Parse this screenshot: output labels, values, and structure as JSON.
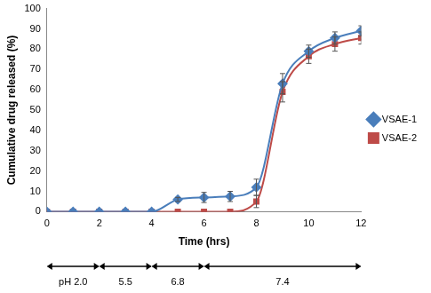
{
  "chart_data": {
    "type": "line",
    "x_label": "Time (hrs)",
    "y_label": "Cumulative drug released (%)",
    "x": [
      0,
      1,
      2,
      3,
      4,
      5,
      6,
      7,
      8,
      9,
      10,
      11,
      12
    ],
    "series": [
      {
        "name": "VSAE-1",
        "color": "#4a7ebb",
        "marker": "diamond",
        "line_style": "smooth",
        "values": [
          0,
          0,
          0,
          0,
          0,
          6,
          7,
          7.5,
          12,
          63,
          79,
          85.5,
          89
        ],
        "errors": [
          0,
          0,
          0,
          0,
          0,
          1,
          2.5,
          2.5,
          4,
          5,
          3,
          3,
          2.5
        ]
      },
      {
        "name": "VSAE-2",
        "color": "#be4b48",
        "marker": "square",
        "line_style": "smooth",
        "values": [
          0,
          0,
          0,
          0,
          0,
          0,
          0,
          0,
          5,
          59,
          76.5,
          82.5,
          85.5
        ],
        "errors": [
          0,
          0,
          0,
          0,
          0,
          0,
          0,
          0,
          3,
          5,
          3.5,
          3.5,
          3
        ]
      }
    ],
    "xlim": [
      0,
      12
    ],
    "xticks": [
      0,
      2,
      4,
      6,
      8,
      10,
      12
    ],
    "ylim": [
      0,
      100
    ],
    "yticks": [
      0,
      10,
      20,
      30,
      40,
      50,
      60,
      70,
      80,
      90,
      100
    ],
    "grid": false,
    "legend": "right",
    "annotations": [
      {
        "label": "pH 2.0",
        "x_range": [
          0,
          2
        ]
      },
      {
        "label": "5.5",
        "x_range": [
          2,
          4
        ]
      },
      {
        "label": "6.8",
        "x_range": [
          4,
          6
        ]
      },
      {
        "label": "7.4",
        "x_range": [
          6,
          12
        ]
      }
    ]
  }
}
